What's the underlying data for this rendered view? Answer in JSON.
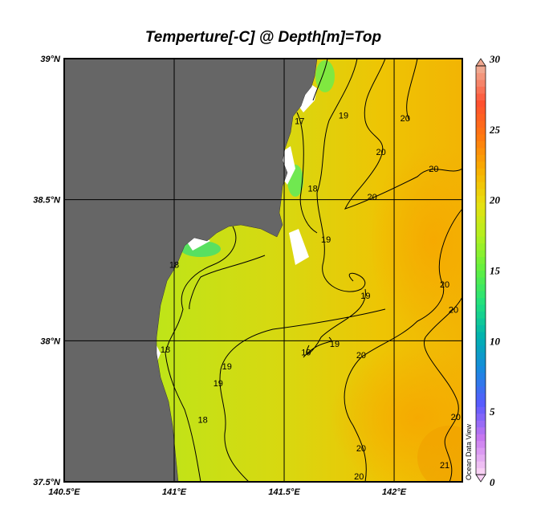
{
  "title": "Temperture[-C] @ Depth[m]=Top",
  "chart_data": {
    "type": "heatmap",
    "variable": "Temperture[-C]",
    "depth": "Top",
    "lon_range": [
      140.5,
      142.31
    ],
    "lat_range": [
      37.5,
      39.0
    ],
    "x_ticks": [
      "140.5°E",
      "141°E",
      "141.5°E",
      "142°E"
    ],
    "x_tick_values": [
      140.5,
      141.0,
      141.5,
      142.0
    ],
    "y_ticks": [
      "39°N",
      "38.5°N",
      "38°N",
      "37.5°N"
    ],
    "y_tick_values": [
      39.0,
      38.5,
      38.0,
      37.5
    ],
    "grid": true,
    "colorbar": {
      "range": [
        0,
        30
      ],
      "ticks": [
        "0",
        "5",
        "10",
        "15",
        "20",
        "25",
        "30"
      ],
      "tick_values": [
        0,
        5,
        10,
        15,
        20,
        25,
        30
      ],
      "colors": [
        "#f8d0f4",
        "#c878f0",
        "#5a5aff",
        "#1a88e0",
        "#00b0b0",
        "#20e080",
        "#60f040",
        "#b0f020",
        "#e8e010",
        "#f8b000",
        "#ff7810",
        "#ff5030",
        "#f0a890"
      ]
    },
    "contour_labels": [
      {
        "value": "17",
        "lon": 141.57,
        "lat": 38.78
      },
      {
        "value": "19",
        "lon": 141.77,
        "lat": 38.8
      },
      {
        "value": "20",
        "lon": 142.05,
        "lat": 38.79
      },
      {
        "value": "20",
        "lon": 141.94,
        "lat": 38.67
      },
      {
        "value": "18",
        "lon": 141.63,
        "lat": 38.54
      },
      {
        "value": "20",
        "lon": 141.9,
        "lat": 38.51
      },
      {
        "value": "20",
        "lon": 142.18,
        "lat": 38.61
      },
      {
        "value": "19",
        "lon": 141.69,
        "lat": 38.36
      },
      {
        "value": "18",
        "lon": 141.0,
        "lat": 38.27
      },
      {
        "value": "19",
        "lon": 141.87,
        "lat": 38.16
      },
      {
        "value": "20",
        "lon": 142.23,
        "lat": 38.2
      },
      {
        "value": "20",
        "lon": 142.27,
        "lat": 38.11
      },
      {
        "value": "18",
        "lon": 140.96,
        "lat": 37.97
      },
      {
        "value": "19",
        "lon": 141.24,
        "lat": 37.91
      },
      {
        "value": "19",
        "lon": 141.6,
        "lat": 37.96
      },
      {
        "value": "19",
        "lon": 141.73,
        "lat": 37.99
      },
      {
        "value": "20",
        "lon": 141.85,
        "lat": 37.95
      },
      {
        "value": "19",
        "lon": 141.2,
        "lat": 37.85
      },
      {
        "value": "18",
        "lon": 141.13,
        "lat": 37.72
      },
      {
        "value": "20",
        "lon": 141.85,
        "lat": 37.62
      },
      {
        "value": "20",
        "lon": 142.28,
        "lat": 37.73
      },
      {
        "value": "21",
        "lon": 142.23,
        "lat": 37.56
      },
      {
        "value": "20",
        "lon": 141.84,
        "lat": 37.52
      }
    ]
  },
  "watermark": "Ocean Data View"
}
